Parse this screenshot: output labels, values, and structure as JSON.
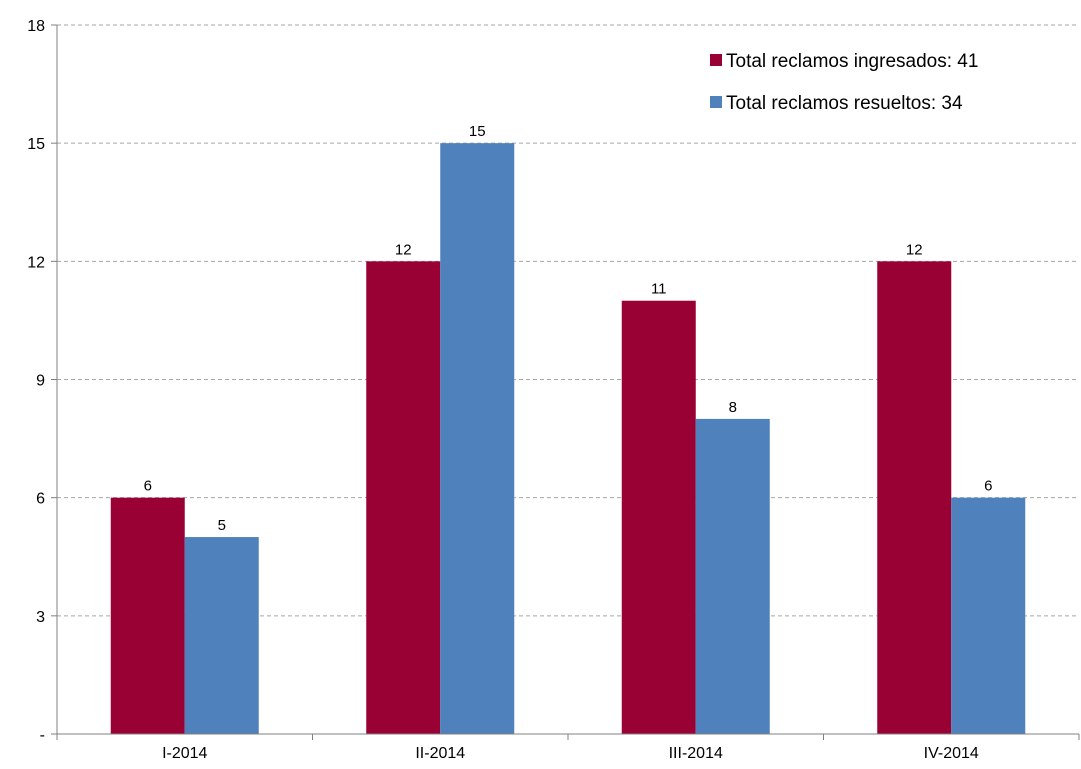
{
  "chart_data": {
    "type": "bar",
    "categories": [
      "I-2014",
      "II-2014",
      "III-2014",
      "IV-2014"
    ],
    "series": [
      {
        "name": "Total reclamos ingresados: 41",
        "values": [
          6,
          12,
          11,
          12
        ],
        "color": "#990033"
      },
      {
        "name": "Total reclamos resueltos: 34",
        "values": [
          5,
          15,
          8,
          6
        ],
        "color": "#4f81bd"
      }
    ],
    "ylim": [
      0,
      18
    ],
    "yticks": [
      0,
      3,
      6,
      9,
      12,
      15,
      18
    ],
    "ytick_labels": [
      "-",
      "3",
      "6",
      "9",
      "12",
      "15",
      "18"
    ],
    "grid": true,
    "grid_style": "dashed",
    "legend_position": "top-right",
    "title": "",
    "xlabel": "",
    "ylabel": ""
  }
}
